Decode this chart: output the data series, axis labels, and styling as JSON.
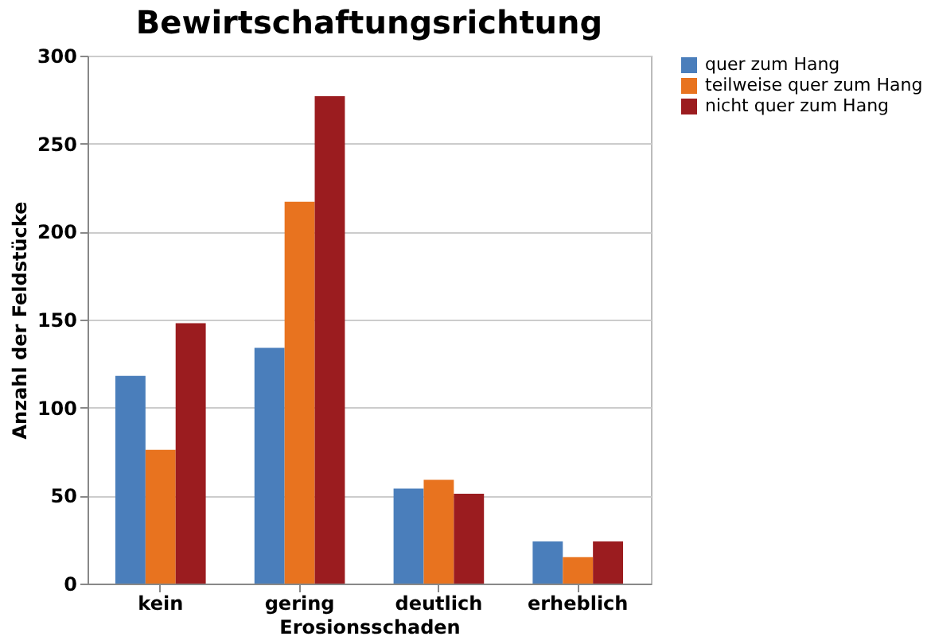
{
  "chart_data": {
    "type": "bar",
    "title": "Bewirtschaftungsrichtung",
    "xlabel": "Erosionsschaden",
    "ylabel": "Anzahl der Feldstücke",
    "categories": [
      "kein",
      "gering",
      "deutlich",
      "erheblich"
    ],
    "series": [
      {
        "name": "quer zum Hang",
        "color": "#4a7ebb",
        "values": [
          118,
          134,
          54,
          24
        ]
      },
      {
        "name": "teilweise quer zum Hang",
        "color": "#e8731f",
        "values": [
          76,
          217,
          59,
          15
        ]
      },
      {
        "name": "nicht quer zum Hang",
        "color": "#9b1c1f",
        "values": [
          148,
          277,
          51,
          24
        ]
      }
    ],
    "ylim": [
      0,
      300
    ],
    "yticks": [
      0,
      50,
      100,
      150,
      200,
      250,
      300
    ],
    "grid": "y",
    "legend": "right"
  }
}
